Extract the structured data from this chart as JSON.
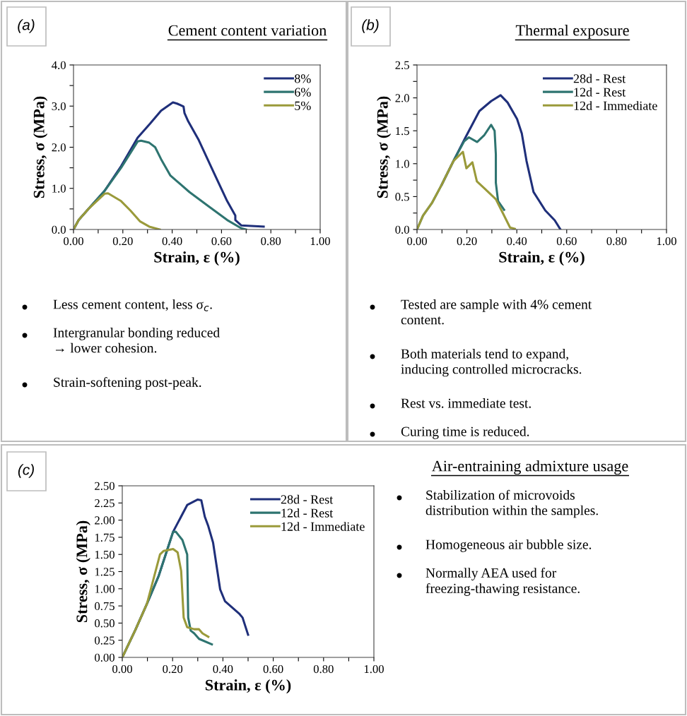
{
  "chart_data": [
    {
      "type": "line",
      "title": "Cement content variation",
      "xlabel": "Strain, ε (%)",
      "ylabel": "Stress, σ (MPa)",
      "legend": "top right",
      "grid": false,
      "line_style": "solid",
      "marker": "none",
      "xlim": [
        0,
        1
      ],
      "xticks": [
        {
          "value": 0,
          "label": "0.00"
        },
        {
          "value": 0.1,
          "label": null
        },
        {
          "value": 0.2,
          "label": "0.20"
        },
        {
          "value": 0.3,
          "label": null
        },
        {
          "value": 0.4,
          "label": "0.40"
        },
        {
          "value": 0.5,
          "label": null
        },
        {
          "value": 0.6,
          "label": "0.60"
        },
        {
          "value": 0.7,
          "label": null
        },
        {
          "value": 0.8,
          "label": "0.80"
        },
        {
          "value": 0.9,
          "label": null
        },
        {
          "value": 1,
          "label": "1.00"
        }
      ],
      "ylim": [
        0,
        4
      ],
      "yticks": [
        {
          "value": 0,
          "label": "0.0"
        },
        {
          "value": 0.5,
          "label": null
        },
        {
          "value": 1,
          "label": "1.0"
        },
        {
          "value": 1.5,
          "label": null
        },
        {
          "value": 2,
          "label": "2.0"
        },
        {
          "value": 2.5,
          "label": null
        },
        {
          "value": 3,
          "label": "3.0"
        },
        {
          "value": 3.5,
          "label": null
        },
        {
          "value": 4,
          "label": "4.0"
        }
      ],
      "annotations": [
        "(a)",
        "Less cement content, less σ$_{c}$.",
        "Intergranular bonding reduced\n→ lower cohesion.",
        "Strain-softening post-peak."
      ],
      "series": [
        {
          "name": "8%",
          "color": "#1f2f7a",
          "x": [
            0,
            0.021,
            0.059,
            0.126,
            0.193,
            0.26,
            0.31,
            0.355,
            0.403,
            0.42,
            0.446,
            0.45,
            0.465,
            0.508,
            0.565,
            0.623,
            0.656,
            0.656,
            0.68,
            0.771
          ],
          "values": [
            0,
            0.23,
            0.49,
            0.94,
            1.54,
            2.23,
            2.57,
            2.89,
            3.09,
            3.06,
            2.99,
            2.83,
            2.63,
            2.17,
            1.43,
            0.69,
            0.34,
            0.23,
            0.1,
            0.07
          ]
        },
        {
          "name": "6%",
          "color": "#2e7470",
          "x": [
            0,
            0.021,
            0.059,
            0.126,
            0.193,
            0.26,
            0.274,
            0.307,
            0.331,
            0.355,
            0.393,
            0.47,
            0.546,
            0.623,
            0.68,
            0.7
          ],
          "values": [
            0,
            0.23,
            0.49,
            0.94,
            1.5,
            2.14,
            2.16,
            2.11,
            2.0,
            1.71,
            1.31,
            0.91,
            0.57,
            0.23,
            0.03,
            0
          ]
        },
        {
          "name": "5%",
          "color": "#9a9a3a",
          "x": [
            0,
            0.021,
            0.059,
            0.126,
            0.14,
            0.193,
            0.231,
            0.269,
            0.307,
            0.35
          ],
          "values": [
            0,
            0.23,
            0.49,
            0.87,
            0.88,
            0.69,
            0.46,
            0.2,
            0.07,
            0
          ]
        }
      ]
    },
    {
      "type": "line",
      "title": "Thermal exposure",
      "xlabel": "Strain, ε (%)",
      "ylabel": "Stress, σ (MPa)",
      "legend": "top right",
      "grid": false,
      "line_style": "solid",
      "marker": "none",
      "xlim": [
        0,
        1
      ],
      "xticks": [
        {
          "value": 0,
          "label": "0.00"
        },
        {
          "value": 0.1,
          "label": null
        },
        {
          "value": 0.2,
          "label": "0.20"
        },
        {
          "value": 0.3,
          "label": null
        },
        {
          "value": 0.4,
          "label": "0.40"
        },
        {
          "value": 0.5,
          "label": null
        },
        {
          "value": 0.6,
          "label": "0.60"
        },
        {
          "value": 0.7,
          "label": null
        },
        {
          "value": 0.8,
          "label": "0.80"
        },
        {
          "value": 0.9,
          "label": null
        },
        {
          "value": 1,
          "label": "1.00"
        }
      ],
      "ylim": [
        0,
        2.5
      ],
      "yticks": [
        {
          "value": 0,
          "label": "0.0"
        },
        {
          "value": 0.25,
          "label": null
        },
        {
          "value": 0.5,
          "label": "0.5"
        },
        {
          "value": 0.75,
          "label": null
        },
        {
          "value": 1,
          "label": "1.0"
        },
        {
          "value": 1.25,
          "label": null
        },
        {
          "value": 1.5,
          "label": "1.5"
        },
        {
          "value": 1.75,
          "label": null
        },
        {
          "value": 2,
          "label": "2.0"
        },
        {
          "value": 2.25,
          "label": null
        },
        {
          "value": 2.5,
          "label": "2.5"
        }
      ],
      "annotations": [
        "(b)",
        "Tested are sample with 4% cement\ncontent.",
        "Both materials tend to expand,\ninducing controlled microcracks.",
        "Rest vs. immediate test.",
        "Curing time is reduced."
      ],
      "series": [
        {
          "name": "28d - Rest",
          "color": "#1f2f7a",
          "x": [
            0.099,
            0.146,
            0.193,
            0.25,
            0.297,
            0.335,
            0.363,
            0.401,
            0.42,
            0.439,
            0.467,
            0.514,
            0.552,
            0.575
          ],
          "values": [
            0.68,
            1.04,
            1.39,
            1.8,
            1.95,
            2.04,
            1.93,
            1.68,
            1.46,
            1.04,
            0.57,
            0.29,
            0.14,
            0
          ]
        },
        {
          "name": "12d - Rest",
          "color": "#2e7470",
          "x": [
            0,
            0.024,
            0.061,
            0.099,
            0.146,
            0.189,
            0.208,
            0.241,
            0.269,
            0.297,
            0.311,
            0.316,
            0.316,
            0.325,
            0.349
          ],
          "values": [
            0,
            0.21,
            0.41,
            0.68,
            1.04,
            1.34,
            1.4,
            1.33,
            1.43,
            1.59,
            1.5,
            1.14,
            0.71,
            0.43,
            0.3
          ]
        },
        {
          "name": "12d - Immediate",
          "color": "#9a9a3a",
          "x": [
            0,
            0.024,
            0.061,
            0.099,
            0.146,
            0.184,
            0.198,
            0.222,
            0.24,
            0.269,
            0.316,
            0.344,
            0.373,
            0.392
          ],
          "values": [
            0,
            0.21,
            0.41,
            0.68,
            1.04,
            1.18,
            0.93,
            1.02,
            0.73,
            0.63,
            0.46,
            0.25,
            0.03,
            0.01
          ]
        }
      ]
    },
    {
      "type": "line",
      "xlabel": "Strain, ε (%)",
      "ylabel": "Stress, σ (MPa)",
      "legend": "top right",
      "grid": false,
      "line_style": "solid",
      "marker": "none",
      "xlim": [
        0,
        1
      ],
      "xticks": [
        {
          "value": 0,
          "label": "0.00"
        },
        {
          "value": 0.1,
          "label": null
        },
        {
          "value": 0.2,
          "label": "0.20"
        },
        {
          "value": 0.3,
          "label": null
        },
        {
          "value": 0.4,
          "label": "0.40"
        },
        {
          "value": 0.5,
          "label": null
        },
        {
          "value": 0.6,
          "label": "0.60"
        },
        {
          "value": 0.7,
          "label": null
        },
        {
          "value": 0.8,
          "label": "0.80"
        },
        {
          "value": 0.9,
          "label": null
        },
        {
          "value": 1,
          "label": "1.00"
        }
      ],
      "ylim": [
        0,
        2.5
      ],
      "yticks": [
        {
          "value": 0,
          "label": "0.00"
        },
        {
          "value": 0.25,
          "label": "0.25"
        },
        {
          "value": 0.5,
          "label": "0.50"
        },
        {
          "value": 0.75,
          "label": "0.75"
        },
        {
          "value": 1,
          "label": "1.00"
        },
        {
          "value": 1.25,
          "label": "1.25"
        },
        {
          "value": 1.5,
          "label": "1.50"
        },
        {
          "value": 1.75,
          "label": "1.75"
        },
        {
          "value": 2,
          "label": "2.00"
        },
        {
          "value": 2.25,
          "label": "2.25"
        },
        {
          "value": 2.5,
          "label": "2.50"
        }
      ],
      "annotations": [
        "(c)"
      ],
      "series": [
        {
          "name": "28d - Rest",
          "color": "#1f2f7a",
          "x": [
            0,
            0.052,
            0.098,
            0.145,
            0.202,
            0.258,
            0.3,
            0.314,
            0.328,
            0.342,
            0.361,
            0.389,
            0.408,
            0.464,
            0.478,
            0.5
          ],
          "values": [
            0,
            0.4,
            0.78,
            1.19,
            1.83,
            2.22,
            2.3,
            2.29,
            2.05,
            1.91,
            1.67,
            0.99,
            0.82,
            0.64,
            0.58,
            0.33
          ]
        },
        {
          "name": "12d - Rest",
          "color": "#2e7470",
          "x": [
            0,
            0.052,
            0.098,
            0.145,
            0.202,
            0.213,
            0.239,
            0.258,
            0.262,
            0.272,
            0.286,
            0.305,
            0.356
          ],
          "values": [
            0,
            0.4,
            0.78,
            1.19,
            1.83,
            1.83,
            1.71,
            1.5,
            0.58,
            0.39,
            0.35,
            0.27,
            0.19
          ]
        },
        {
          "name": "12d - Immediate",
          "color": "#9a9a3a",
          "x": [
            0,
            0.052,
            0.098,
            0.15,
            0.164,
            0.202,
            0.22,
            0.234,
            0.244,
            0.258,
            0.286,
            0.305,
            0.319,
            0.342
          ],
          "values": [
            0,
            0.4,
            0.78,
            1.5,
            1.55,
            1.58,
            1.53,
            1.26,
            0.58,
            0.44,
            0.41,
            0.41,
            0.35,
            0.3
          ]
        }
      ]
    },
    {
      "type": "other",
      "title": "Air-entraining admixture usage",
      "annotations": [
        "Stabilization of microvoids\ndistribution within the samples.",
        "Homogeneous air bubble size.",
        "Normally AEA used for\nfreezing-thawing resistance."
      ]
    }
  ]
}
